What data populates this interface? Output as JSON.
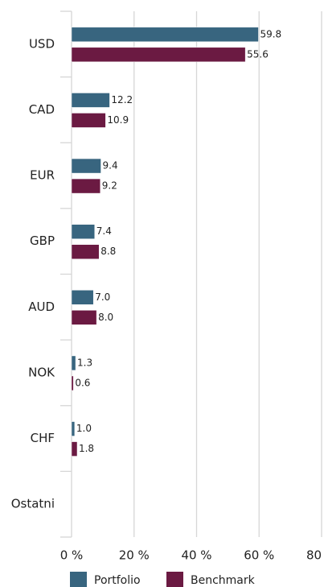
{
  "chart_data": {
    "type": "bar",
    "orientation": "horizontal",
    "categories": [
      "USD",
      "CAD",
      "EUR",
      "GBP",
      "AUD",
      "NOK",
      "CHF",
      "Ostatni"
    ],
    "series": [
      {
        "name": "Portfolio",
        "color": "#38657f",
        "values": [
          59.8,
          12.2,
          9.4,
          7.4,
          7.0,
          1.3,
          1.0,
          null
        ],
        "value_labels": [
          "59.8",
          "12.2",
          "9.4",
          "7.4",
          "7.0",
          "1.3",
          "1.0",
          null
        ]
      },
      {
        "name": "Benchmark",
        "color": "#6b1a42",
        "values": [
          55.6,
          10.9,
          9.2,
          8.8,
          8.0,
          0.6,
          1.8,
          null
        ],
        "value_labels": [
          "55.6",
          "10.9",
          "9.2",
          "8.8",
          "8.0",
          "0.6",
          "1.8",
          null
        ]
      }
    ],
    "xlim": [
      0,
      80
    ],
    "xticks": [
      {
        "value": 0,
        "label": "0 %"
      },
      {
        "value": 20,
        "label": "20 %"
      },
      {
        "value": 40,
        "label": "40 %"
      },
      {
        "value": 60,
        "label": "60 %"
      },
      {
        "value": 80,
        "label": "80 %"
      }
    ],
    "grid": true,
    "legend": "bottom"
  }
}
